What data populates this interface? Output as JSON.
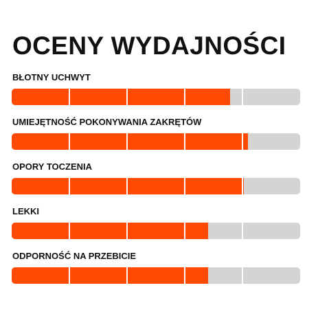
{
  "title": "OCENY WYDAJNOŚCI",
  "colors": {
    "fill": "#ff4a00",
    "track": "#d6d3d3",
    "divider": "#ffffff",
    "text": "#111111"
  },
  "segments": 5,
  "ratings": [
    {
      "label": "BŁOTNY UCHWYT",
      "level": 0.757
    },
    {
      "label": "UMIEJĘTNOŚĆ POKONYWANIA ZAKRĘTÓW",
      "level": 0.819
    },
    {
      "label": "OPORY TOCZENIA",
      "level": 0.805
    },
    {
      "label": "LEKKI",
      "level": 0.68
    },
    {
      "label": "ODPORNOŚĆ NA PRZEBICIE",
      "level": 0.68
    }
  ]
}
